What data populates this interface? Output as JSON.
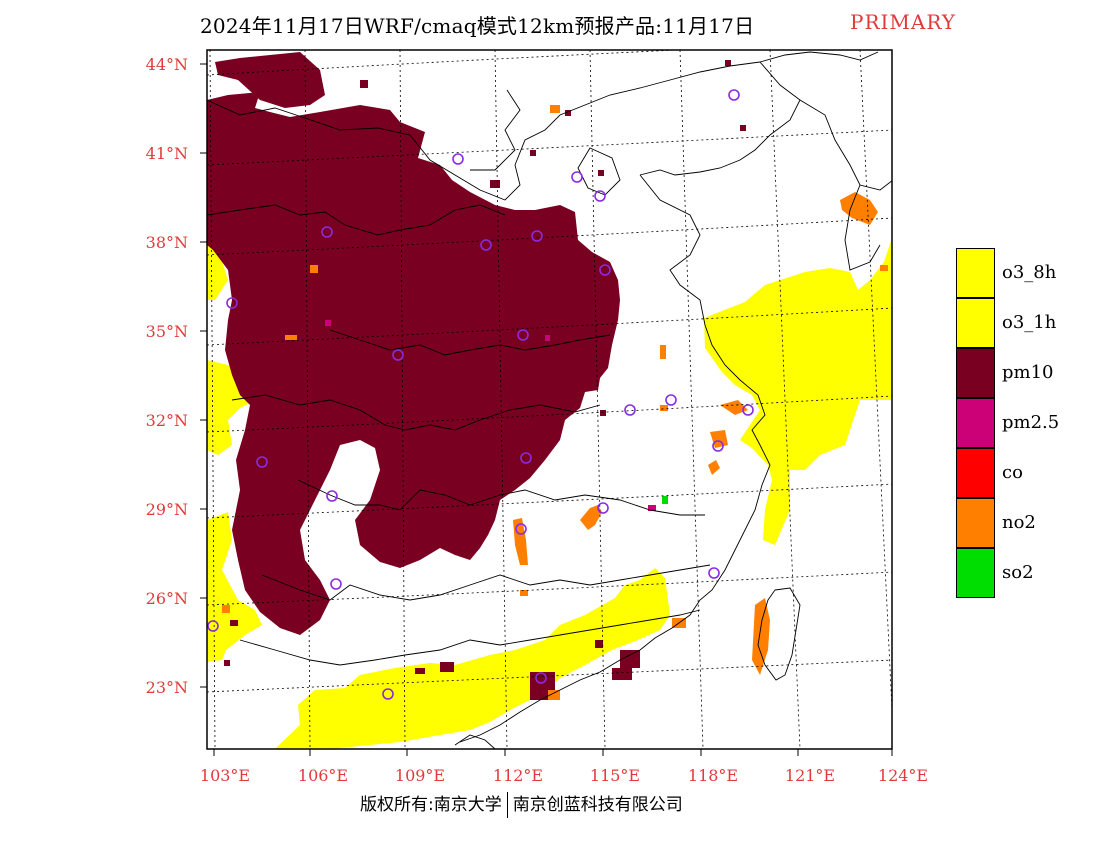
{
  "title": "2024年11月17日WRF/cmaq模式12km预报产品:11月17日",
  "title_tag": "PRIMARY",
  "copyright_left": "版权所有:南京大学",
  "copyright_right": "南京创蓝科技有限公司",
  "lat_labels": [
    "44°N",
    "41°N",
    "38°N",
    "35°N",
    "32°N",
    "29°N",
    "26°N",
    "23°N"
  ],
  "lon_labels": [
    "103°E",
    "106°E",
    "109°E",
    "112°E",
    "115°E",
    "118°E",
    "121°E",
    "124°E"
  ],
  "legend": [
    {
      "label": "o3_8h",
      "color": "#ffff00"
    },
    {
      "label": "o3_1h",
      "color": "#ffff00"
    },
    {
      "label": "pm10",
      "color": "#7a0022"
    },
    {
      "label": "pm2.5",
      "color": "#cc0077"
    },
    {
      "label": "co",
      "color": "#ff0000"
    },
    {
      "label": "no2",
      "color": "#ff7f00"
    },
    {
      "label": "so2",
      "color": "#00dd00"
    }
  ],
  "colors": {
    "pm10": "#7a0022",
    "o3": "#ffff00",
    "no2": "#ff7f00",
    "pm25": "#cc0077",
    "so2": "#00dd00",
    "city_marker": "#8a2be2",
    "label_red": "#e03a3a"
  }
}
